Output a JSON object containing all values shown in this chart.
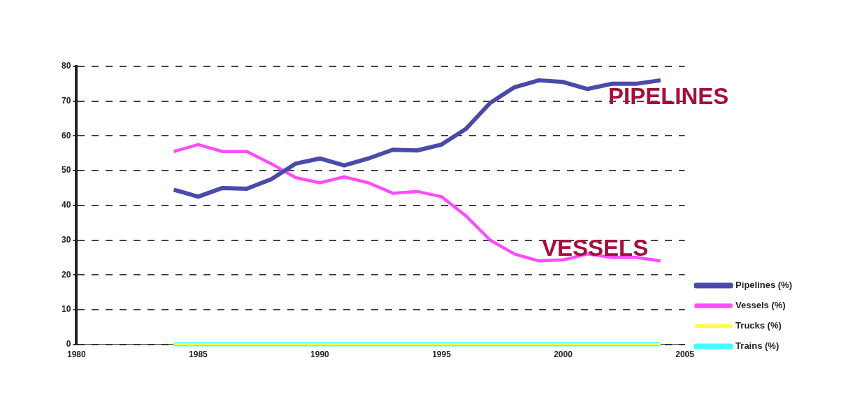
{
  "chart_data": {
    "type": "line",
    "x": [
      1984,
      1985,
      1986,
      1987,
      1988,
      1989,
      1990,
      1991,
      1992,
      1993,
      1994,
      1995,
      1996,
      1997,
      1998,
      1999,
      2000,
      2001,
      2002,
      2003,
      2004
    ],
    "series": [
      {
        "name": "Pipelines (%)",
        "color": "#4a4aa8",
        "values": [
          44.5,
          42.5,
          45,
          44.8,
          47.5,
          52,
          53.5,
          51.5,
          53.5,
          56,
          55.8,
          57.5,
          62,
          69.5,
          74,
          76,
          75.5,
          73.5,
          75,
          75,
          76
        ]
      },
      {
        "name": "Vessels (%)",
        "color": "#ff4cff",
        "values": [
          55.5,
          57.5,
          55.5,
          55.5,
          52,
          48,
          46.5,
          48.2,
          46.5,
          43.5,
          44,
          42.5,
          37,
          30,
          26,
          24,
          24.3,
          26,
          25,
          25,
          24
        ]
      },
      {
        "name": "Trucks (%)",
        "color": "#ffff40",
        "values": [
          0,
          0,
          0,
          0,
          0,
          0,
          0,
          0,
          0,
          0,
          0,
          0,
          0,
          0,
          0,
          0,
          0,
          0,
          0,
          0,
          0
        ]
      },
      {
        "name": "Trains (%)",
        "color": "#40ffff",
        "values": [
          0,
          0,
          0,
          0,
          0,
          0,
          0,
          0,
          0,
          0,
          0,
          0,
          0,
          0,
          0,
          0,
          0,
          0,
          0,
          0,
          0
        ]
      }
    ],
    "xlim": [
      1980,
      2005
    ],
    "xticks": [
      1980,
      1985,
      1990,
      1995,
      2000,
      2005
    ],
    "ylim": [
      0,
      80
    ],
    "yticks": [
      0,
      10,
      20,
      30,
      40,
      50,
      60,
      70,
      80
    ],
    "grid": "y",
    "legend": "bottom right",
    "marker": "none",
    "line_style": "solid",
    "annotations": [
      "PIPELINES",
      "VESSELS"
    ]
  }
}
